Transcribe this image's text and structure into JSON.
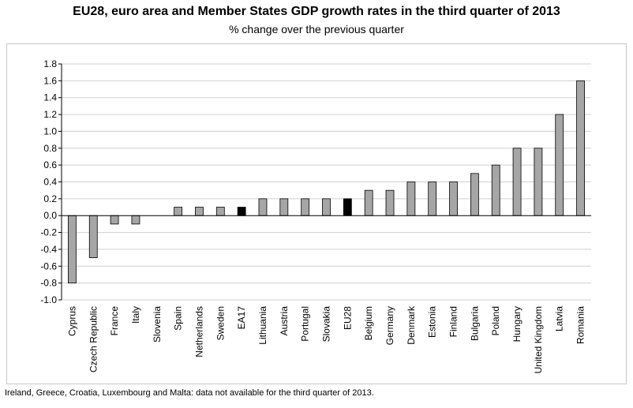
{
  "chart_data": {
    "type": "bar",
    "title": "EU28, euro area and Member States GDP growth rates in the third quarter of 2013",
    "subtitle": "% change over the previous quarter",
    "xlabel": "",
    "ylabel": "",
    "ylim": [
      -1.0,
      1.8
    ],
    "ytick_step": 0.2,
    "yticks": [
      "-1.0",
      "-0.8",
      "-0.6",
      "-0.4",
      "-0.2",
      "0.0",
      "0.2",
      "0.4",
      "0.6",
      "0.8",
      "1.0",
      "1.2",
      "1.4",
      "1.6",
      "1.8"
    ],
    "grid": true,
    "categories": [
      "Cyprus",
      "Czech Republic",
      "France",
      "Italy",
      "Slovenia",
      "Spain",
      "Netherlands",
      "Sweden",
      "EA17",
      "Lithuania",
      "Austria",
      "Portugal",
      "Slovakia",
      "EU28",
      "Belgium",
      "Germany",
      "Denmark",
      "Estonia",
      "Finland",
      "Bulgaria",
      "Poland",
      "Hungary",
      "United Kingdom",
      "Latvia",
      "Romania"
    ],
    "values": [
      -0.8,
      -0.5,
      -0.1,
      -0.1,
      0.0,
      0.1,
      0.1,
      0.1,
      0.1,
      0.2,
      0.2,
      0.2,
      0.2,
      0.2,
      0.3,
      0.3,
      0.4,
      0.4,
      0.4,
      0.5,
      0.6,
      0.8,
      0.8,
      1.2,
      1.6
    ],
    "highlight": [
      "EA17",
      "EU28"
    ],
    "colors": {
      "bar": "#a6a6a6",
      "highlight": "#000000",
      "grid": "#d0d0d0",
      "border": "#000000"
    }
  },
  "footnote": "Ireland, Greece, Croatia, Luxembourg and Malta: data not available for the third quarter of 2013."
}
